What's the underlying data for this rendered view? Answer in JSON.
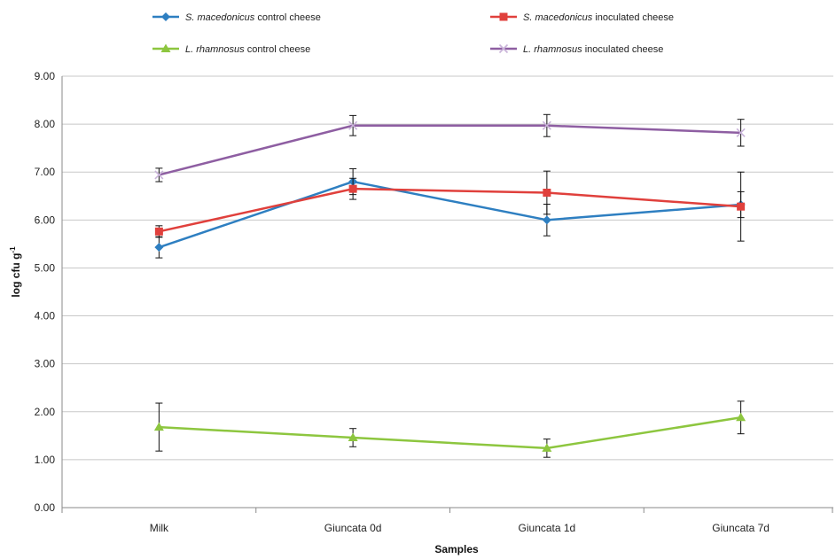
{
  "chart_data": {
    "type": "line",
    "title": "",
    "xlabel": "Samples",
    "ylabel": "log cfu g",
    "ylabel_superscript": "-1",
    "categories": [
      "Milk",
      "Giuncata 0d",
      "Giuncata 1d",
      "Giuncata 7d"
    ],
    "ylim": [
      0,
      9
    ],
    "yticks": [
      "0.00",
      "1.00",
      "2.00",
      "3.00",
      "4.00",
      "5.00",
      "6.00",
      "7.00",
      "8.00",
      "9.00"
    ],
    "grid": true,
    "legend_position": "top",
    "series": [
      {
        "species": "S. macedonicus",
        "suffix": " control cheese",
        "color": "#2e7fc1",
        "marker": "diamond",
        "values": [
          5.43,
          6.8,
          6.0,
          6.32
        ],
        "errors": [
          0.22,
          0.27,
          0.33,
          0.27
        ]
      },
      {
        "species": "S. macedonicus",
        "suffix": " inoculated cheese",
        "color": "#e0403c",
        "marker": "square",
        "values": [
          5.76,
          6.65,
          6.57,
          6.28
        ],
        "errors": [
          0.12,
          0.22,
          0.45,
          0.72
        ]
      },
      {
        "species": "L. rhamnosus",
        "suffix": " control cheese",
        "color": "#8dc63f",
        "marker": "triangle",
        "values": [
          1.68,
          1.46,
          1.24,
          1.88
        ],
        "errors": [
          0.5,
          0.19,
          0.19,
          0.34
        ]
      },
      {
        "species": "L. rhamnosus",
        "suffix": " inoculated cheese",
        "color": "#8e5ea2",
        "marker": "x",
        "values": [
          6.94,
          7.97,
          7.97,
          7.82
        ],
        "errors": [
          0.14,
          0.21,
          0.23,
          0.28
        ]
      }
    ]
  }
}
